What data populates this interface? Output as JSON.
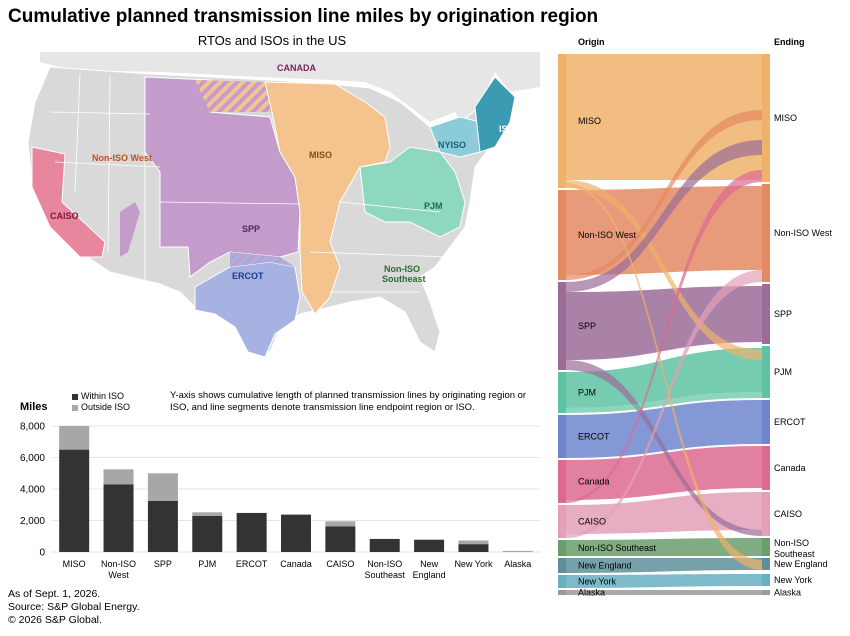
{
  "title": "Cumulative planned transmission line miles by origination region",
  "map": {
    "subtitle": "RTOs and ISOs in the US",
    "labels": {
      "canada": "CANADA",
      "non_iso_west": "Non-ISO West",
      "miso": "MISO",
      "nyiso": "NYISO",
      "iso_ne": "ISO-NE",
      "caiso": "CAISO",
      "spp": "SPP",
      "pjm": "PJM",
      "ercot": "ERCOT",
      "non_iso_southeast_1": "Non-ISO",
      "non_iso_southeast_2": "Southeast"
    },
    "colors": {
      "miso": "#f5c48e",
      "spp": "#c49ccb",
      "pjm": "#8fd8c0",
      "nyiso": "#8ccbd9",
      "iso_ne": "#3b9bb3",
      "caiso": "#e8869e",
      "ercot": "#a6b3e2",
      "other": "#d9d9d9"
    }
  },
  "bar_chart": {
    "ylabel": "Miles",
    "legend": {
      "within": "Within ISO",
      "outside": "Outside ISO"
    },
    "note": "Y-axis shows cumulative length of planned transmission lines by originating region or ISO, and line segments denote transmission line endpoint region or ISO.",
    "colors": {
      "within": "#333333",
      "outside": "#a7a7a9"
    }
  },
  "sankey": {
    "origin_header": "Origin",
    "ending_header": "Ending",
    "origin_labels": [
      "MISO",
      "Non-ISO West",
      "SPP",
      "PJM",
      "ERCOT",
      "Canada",
      "CAISO",
      "Non-ISO Southeast",
      "New England",
      "New York",
      "Alaska"
    ],
    "ending_labels": [
      "MISO",
      "Non-ISO West",
      "SPP",
      "PJM",
      "ERCOT",
      "Canada",
      "CAISO",
      "Non-ISO Southeast",
      "New England",
      "New York",
      "Alaska"
    ],
    "colors": [
      "#eeb26a",
      "#e48a63",
      "#9b6c98",
      "#5ec3a3",
      "#6f86cf",
      "#dc6a8f",
      "#e3a0b8",
      "#6b9e6b",
      "#5e8f9b",
      "#67afc1",
      "#9a9a9a"
    ]
  },
  "chart_data": {
    "type": "bar",
    "stacked": true,
    "categories": [
      "MISO",
      "Non-ISO West",
      "SPP",
      "PJM",
      "ERCOT",
      "Canada",
      "CAISO",
      "Non-ISO Southeast",
      "New England",
      "New York",
      "Alaska"
    ],
    "category_lines": [
      [
        "MISO"
      ],
      [
        "Non-ISO",
        "West"
      ],
      [
        "SPP"
      ],
      [
        "PJM"
      ],
      [
        "ERCOT"
      ],
      [
        "Canada"
      ],
      [
        "CAISO"
      ],
      [
        "Non-ISO",
        "Southeast"
      ],
      [
        "New",
        "England"
      ],
      [
        "New York"
      ],
      [
        "Alaska"
      ]
    ],
    "series": [
      {
        "name": "Within ISO",
        "values": [
          6500,
          4300,
          3250,
          2300,
          2480,
          2360,
          1620,
          830,
          780,
          500,
          0
        ]
      },
      {
        "name": "Outside ISO",
        "values": [
          1500,
          950,
          1750,
          220,
          0,
          50,
          330,
          0,
          0,
          230,
          70
        ]
      }
    ],
    "ylim": [
      0,
      8000
    ],
    "yticks": [
      0,
      2000,
      4000,
      6000,
      8000
    ],
    "ytick_labels": [
      "0",
      "2,000",
      "4,000",
      "6,000",
      "8,000"
    ]
  },
  "footer": {
    "line1": "As of Sept. 1, 2026.",
    "line2": "Source: S&P Global Energy.",
    "line3": "© 2026 S&P Global."
  }
}
